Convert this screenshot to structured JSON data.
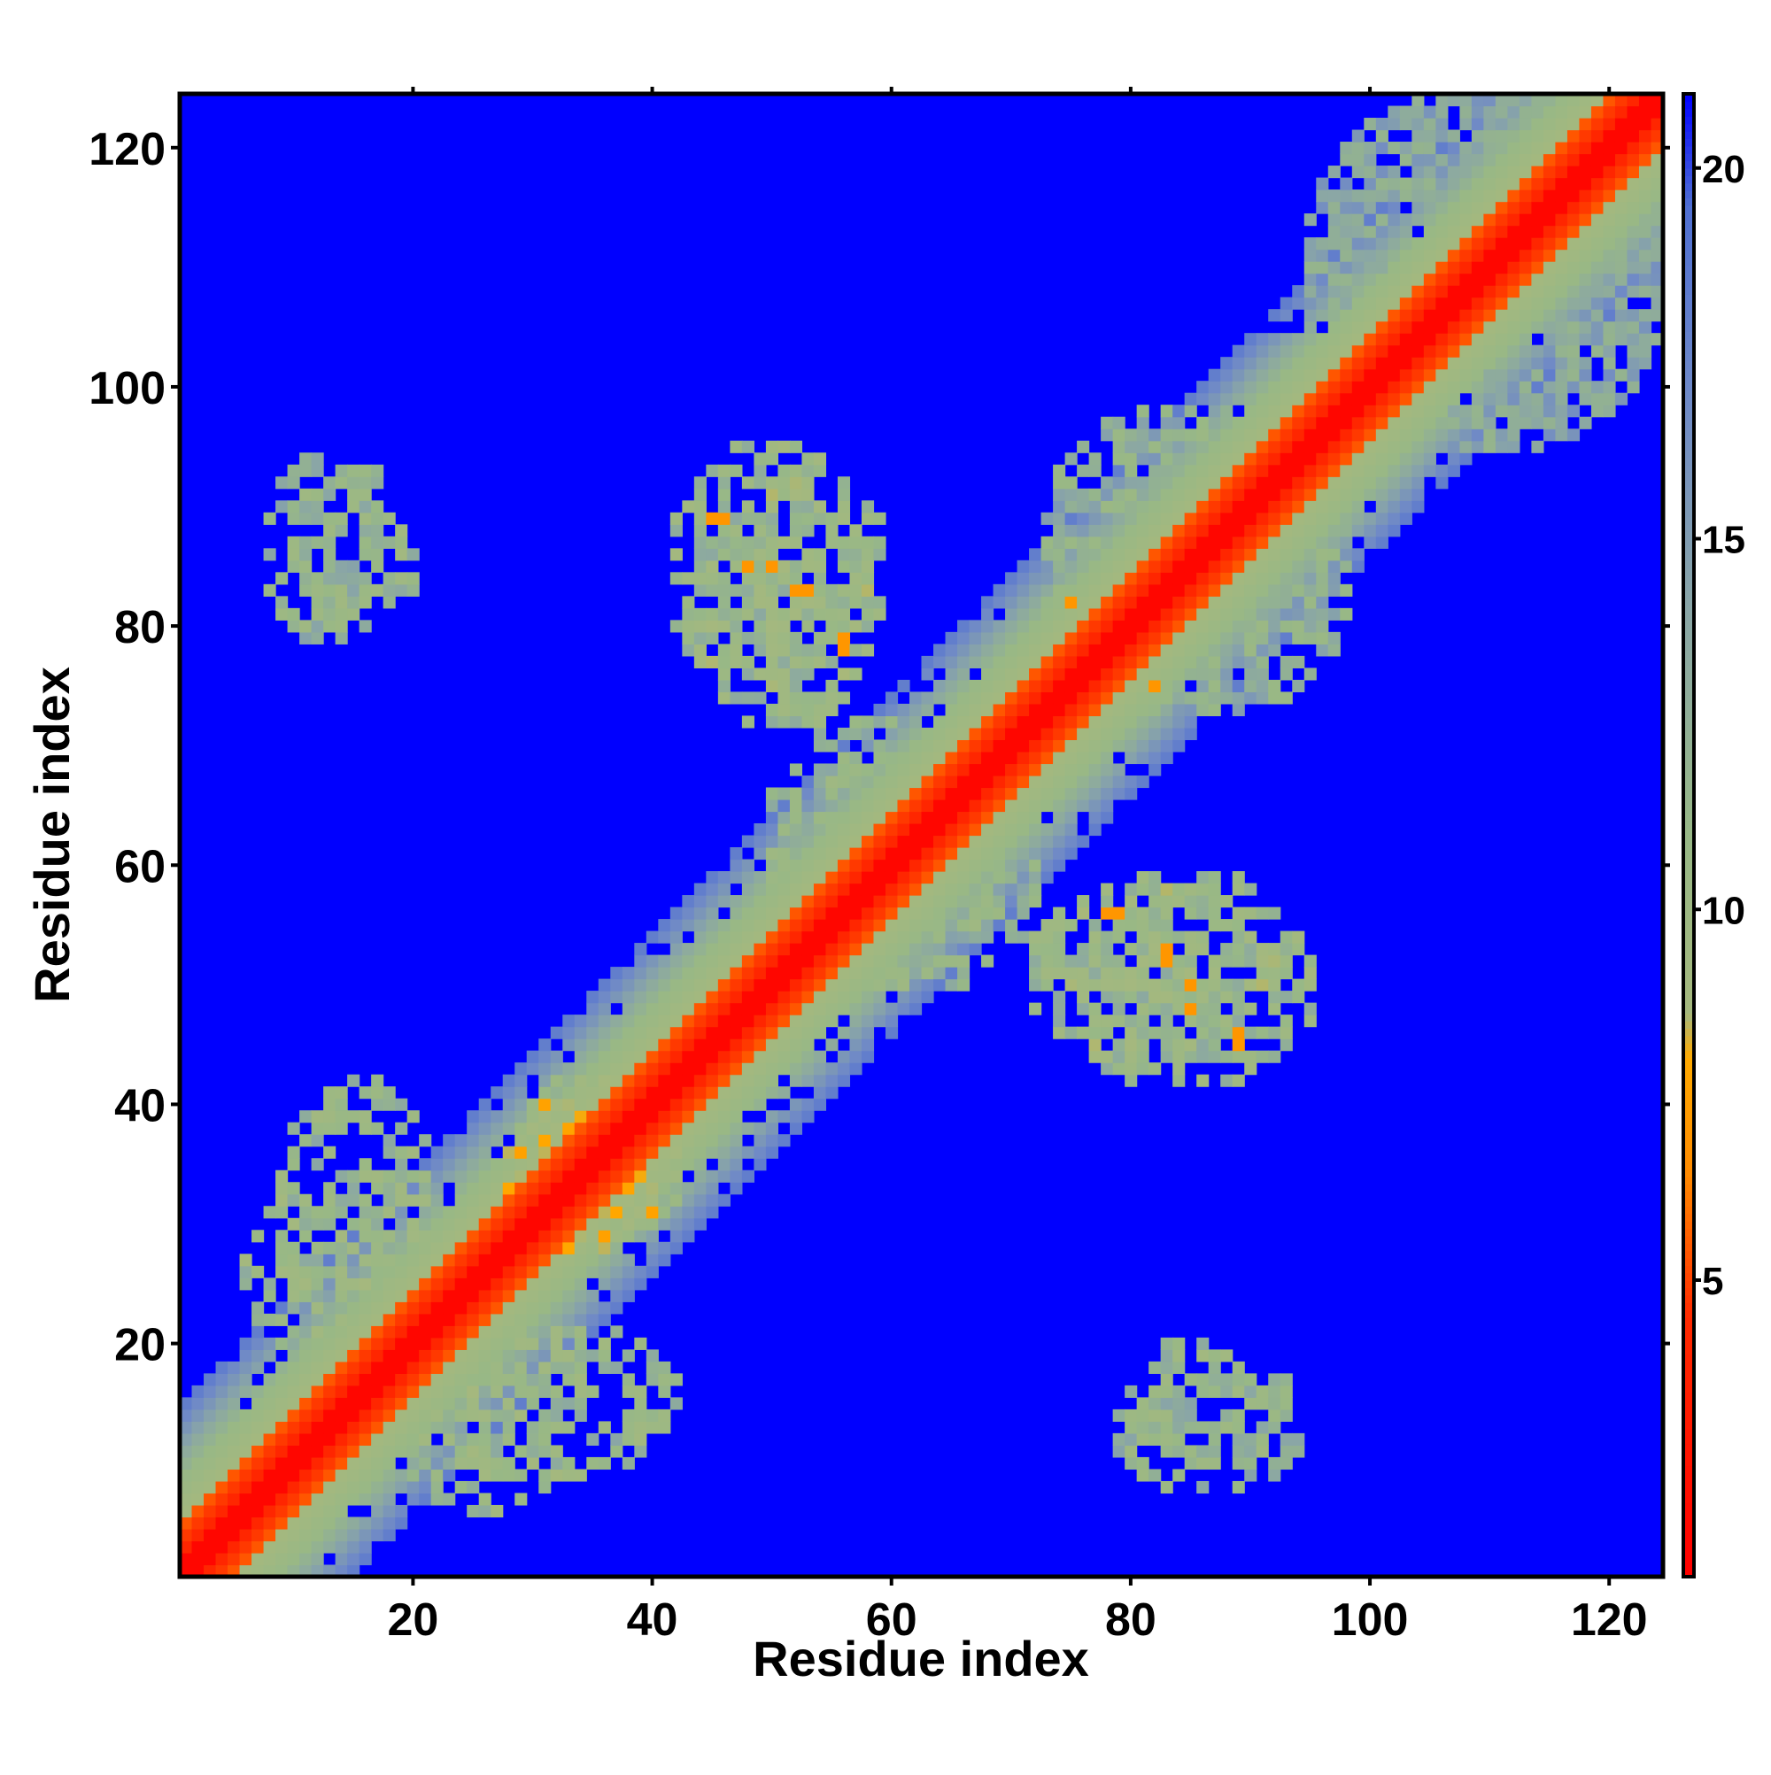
{
  "chart_data": {
    "type": "heatmap",
    "title": "",
    "xlabel": "Residue index",
    "ylabel": "Residue index",
    "x_range": [
      1,
      124
    ],
    "y_range": [
      1,
      124
    ],
    "x_ticks": [
      20,
      40,
      60,
      80,
      100,
      120
    ],
    "y_ticks": [
      20,
      40,
      60,
      80,
      100,
      120
    ],
    "grid": false,
    "matrix_size": 124,
    "symmetric": true,
    "background_value": 21,
    "colorbar": {
      "position": "right",
      "range": [
        1,
        21
      ],
      "ticks": [
        5,
        10,
        15,
        20
      ],
      "color_stops": [
        {
          "value": 1,
          "color": "#ff0000"
        },
        {
          "value": 4.5,
          "color": "#ff2a00"
        },
        {
          "value": 6.5,
          "color": "#ff8c00"
        },
        {
          "value": 8,
          "color": "#ffaa00"
        },
        {
          "value": 8.6,
          "color": "#a5b87e"
        },
        {
          "value": 11,
          "color": "#98b886"
        },
        {
          "value": 14,
          "color": "#8aa6a6"
        },
        {
          "value": 17,
          "color": "#6e88c8"
        },
        {
          "value": 19.5,
          "color": "#4f6fd2"
        },
        {
          "value": 21,
          "color": "#0000ff"
        }
      ]
    },
    "diagonal_band": {
      "core": 2,
      "inner": 5,
      "mid": 9,
      "outer": 15
    },
    "contact_regions": [
      {
        "i_range": [
          10,
          20
        ],
        "j_range": [
          80,
          93
        ],
        "value": 11.5,
        "density": 0.45
      },
      {
        "i_range": [
          44,
          58
        ],
        "j_range": [
          72,
          93
        ],
        "value": 11,
        "density": 0.55
      },
      {
        "i_range": [
          9,
          21
        ],
        "j_range": [
          22,
          42
        ],
        "value": 11.5,
        "density": 0.5
      },
      {
        "i_range": [
          20,
          32
        ],
        "j_range": [
          6,
          18
        ],
        "value": 11,
        "density": 0.55
      },
      {
        "i_range": [
          29,
          40
        ],
        "j_range": [
          28,
          42
        ],
        "value": 10,
        "density": 0.7
      },
      {
        "i_range": [
          74,
          95
        ],
        "j_range": [
          42,
          59
        ],
        "value": 11,
        "density": 0.55
      },
      {
        "i_range": [
          79,
          94
        ],
        "j_range": [
          8,
          17
        ],
        "value": 12,
        "density": 0.45
      },
      {
        "i_range": [
          73,
          96
        ],
        "j_range": [
          73,
          98
        ],
        "value": 13,
        "density": 0.55
      },
      {
        "i_range": [
          95,
          124
        ],
        "j_range": [
          95,
          124
        ],
        "value": 14,
        "density": 0.55
      },
      {
        "i_range": [
          50,
          66
        ],
        "j_range": [
          50,
          72
        ],
        "value": 12,
        "density": 0.5
      }
    ],
    "hot_spots": [
      {
        "i": 34,
        "j": 36,
        "value": 6
      },
      {
        "i": 35,
        "j": 34,
        "value": 6
      },
      {
        "i": 33,
        "j": 35,
        "value": 6
      },
      {
        "i": 50,
        "j": 85,
        "value": 7
      },
      {
        "i": 52,
        "j": 83,
        "value": 7
      },
      {
        "i": 56,
        "j": 78,
        "value": 7
      },
      {
        "i": 46,
        "j": 89,
        "value": 7
      },
      {
        "i": 83,
        "j": 53,
        "value": 7
      },
      {
        "i": 85,
        "j": 48,
        "value": 7
      },
      {
        "i": 89,
        "j": 45,
        "value": 7
      },
      {
        "i": 79,
        "j": 56,
        "value": 7
      },
      {
        "i": 77,
        "j": 79,
        "value": 7
      },
      {
        "i": 82,
        "j": 75,
        "value": 7
      }
    ]
  }
}
